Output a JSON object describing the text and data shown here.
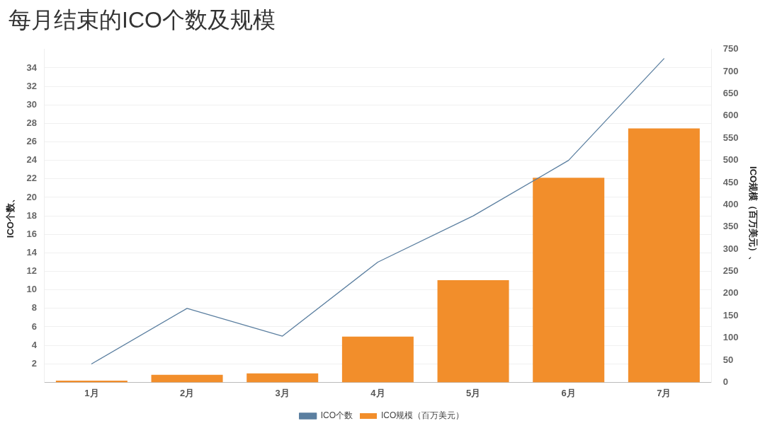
{
  "chart_data": {
    "type": "bar",
    "title": "每月结束的ICO个数及规模",
    "categories": [
      "1月",
      "2月",
      "3月",
      "4月",
      "5月",
      "6月",
      "7月"
    ],
    "series": [
      {
        "name": "ICO个数",
        "type": "line",
        "color": "#5b7fa0",
        "values": [
          2,
          8,
          5,
          13,
          18,
          24,
          35
        ]
      },
      {
        "name": "ICO规模（百万美元）",
        "axis": "y2",
        "color": "#f28e2b",
        "values": [
          4,
          17,
          20,
          103,
          230,
          461,
          572
        ]
      }
    ],
    "ylabel": "ICO个数、",
    "y2label": "ICO规模（百万美元）、",
    "ylim": [
      0,
      36
    ],
    "yticks": [
      2,
      4,
      6,
      8,
      10,
      12,
      14,
      16,
      18,
      20,
      22,
      24,
      26,
      28,
      30,
      32,
      34
    ],
    "y2lim": [
      0,
      750
    ],
    "y2ticks": [
      0,
      50,
      100,
      150,
      200,
      250,
      300,
      350,
      400,
      450,
      500,
      550,
      600,
      650,
      700,
      750
    ],
    "grid": "y",
    "legend": "bottom",
    "marker": "none",
    "line_style": "solid"
  }
}
